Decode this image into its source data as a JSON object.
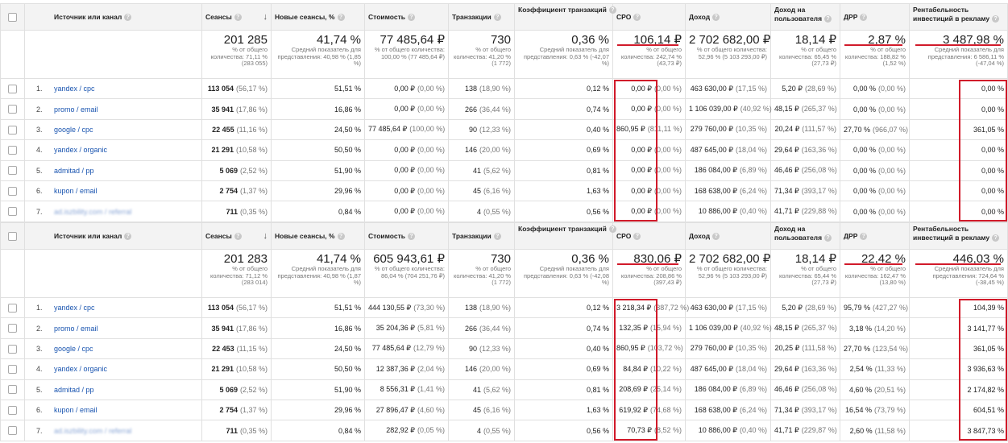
{
  "header": {
    "source": "Источник или канал",
    "sessions": "Сеансы",
    "newSessions": "Новые сеансы, %",
    "cost": "Стоимость",
    "transactions": "Транзакции",
    "convRate": "Коэффициент транзакций",
    "cpo": "CPO",
    "revenue": "Доход",
    "revPerUser": "Доход на пользователя",
    "drr": "ДРР",
    "roi": "Рентабельность инвестиций в рекламу",
    "help_glyph": "?",
    "sort_glyph": "↓"
  },
  "tables": [
    {
      "totals": {
        "sessions": {
          "value": "201 285",
          "sub": "% от общего количества: 71,11 % (283 055)"
        },
        "newSessions": {
          "value": "41,74 %",
          "sub": "Средний показатель для представления: 40,98 % (1,85 %)"
        },
        "cost": {
          "value": "77 485,64 ₽",
          "sub": "% от общего количества: 100,00 % (77 485,64 ₽)"
        },
        "transactions": {
          "value": "730",
          "sub": "% от общего количества: 41,20 % (1 772)"
        },
        "convRate": {
          "value": "0,36 %",
          "sub": "Средний показатель для представления: 0,63 % (-42,07 %)"
        },
        "cpo": {
          "value": "106,14 ₽",
          "sub": "% от общего количества: 242,74 % (43,73 ₽)"
        },
        "revenue": {
          "value": "2 702 682,00 ₽",
          "sub": "% от общего количества: 52,96 % (5 103 293,00 ₽)"
        },
        "revPerUser": {
          "value": "18,14 ₽",
          "sub": "% от общего количества: 65,45 % (27,73 ₽)"
        },
        "drr": {
          "value": "2,87 %",
          "sub": "% от общего количества: 188,82 % (1,52 %)"
        },
        "roi": {
          "value": "3 487,98 %",
          "sub": "Средний показатель для представления: 6 586,11 % (-47,04 %)"
        }
      },
      "rows": [
        {
          "n": "1.",
          "src": "yandex / cpc",
          "sessions": "113 054",
          "sessionsPct": "(56,17 %)",
          "newSessions": "51,51 %",
          "cost": "0,00 ₽",
          "costPct": "(0,00 %)",
          "tr": "138",
          "trPct": "(18,90 %)",
          "conv": "0,12 %",
          "cpo": "0,00 ₽",
          "cpoPct": "(0,00 %)",
          "rev": "463 630,00 ₽",
          "revPct": "(17,15 %)",
          "rpu": "5,20 ₽",
          "rpuPct": "(28,69 %)",
          "drr": "0,00 %",
          "drrPct": "(0,00 %)",
          "roi": "0,00 %"
        },
        {
          "n": "2.",
          "src": "promo / email",
          "sessions": "35 941",
          "sessionsPct": "(17,86 %)",
          "newSessions": "16,86 %",
          "cost": "0,00 ₽",
          "costPct": "(0,00 %)",
          "tr": "266",
          "trPct": "(36,44 %)",
          "conv": "0,74 %",
          "cpo": "0,00 ₽",
          "cpoPct": "(0,00 %)",
          "rev": "1 106 039,00 ₽",
          "revPct": "(40,92 %)",
          "rpu": "48,15 ₽",
          "rpuPct": "(265,37 %)",
          "drr": "0,00 %",
          "drrPct": "(0,00 %)",
          "roi": "0,00 %"
        },
        {
          "n": "3.",
          "src": "google / cpc",
          "sessions": "22 455",
          "sessionsPct": "(11,16 %)",
          "newSessions": "24,50 %",
          "cost": "77 485,64 ₽",
          "costPct": "(100,00 %)",
          "tr": "90",
          "trPct": "(12,33 %)",
          "conv": "0,40 %",
          "cpo": "860,95 ₽",
          "cpoPct": "(811,11 %)",
          "rev": "279 760,00 ₽",
          "revPct": "(10,35 %)",
          "rpu": "20,24 ₽",
          "rpuPct": "(111,57 %)",
          "drr": "27,70 %",
          "drrPct": "(966,07 %)",
          "roi": "361,05 %"
        },
        {
          "n": "4.",
          "src": "yandex / organic",
          "sessions": "21 291",
          "sessionsPct": "(10,58 %)",
          "newSessions": "50,50 %",
          "cost": "0,00 ₽",
          "costPct": "(0,00 %)",
          "tr": "146",
          "trPct": "(20,00 %)",
          "conv": "0,69 %",
          "cpo": "0,00 ₽",
          "cpoPct": "(0,00 %)",
          "rev": "487 645,00 ₽",
          "revPct": "(18,04 %)",
          "rpu": "29,64 ₽",
          "rpuPct": "(163,36 %)",
          "drr": "0,00 %",
          "drrPct": "(0,00 %)",
          "roi": "0,00 %"
        },
        {
          "n": "5.",
          "src": "admitad / pp",
          "sessions": "5 069",
          "sessionsPct": "(2,52 %)",
          "newSessions": "51,90 %",
          "cost": "0,00 ₽",
          "costPct": "(0,00 %)",
          "tr": "41",
          "trPct": "(5,62 %)",
          "conv": "0,81 %",
          "cpo": "0,00 ₽",
          "cpoPct": "(0,00 %)",
          "rev": "186 084,00 ₽",
          "revPct": "(6,89 %)",
          "rpu": "46,46 ₽",
          "rpuPct": "(256,08 %)",
          "drr": "0,00 %",
          "drrPct": "(0,00 %)",
          "roi": "0,00 %"
        },
        {
          "n": "6.",
          "src": "kupon / email",
          "sessions": "2 754",
          "sessionsPct": "(1,37 %)",
          "newSessions": "29,96 %",
          "cost": "0,00 ₽",
          "costPct": "(0,00 %)",
          "tr": "45",
          "trPct": "(6,16 %)",
          "conv": "1,63 %",
          "cpo": "0,00 ₽",
          "cpoPct": "(0,00 %)",
          "rev": "168 638,00 ₽",
          "revPct": "(6,24 %)",
          "rpu": "71,34 ₽",
          "rpuPct": "(393,17 %)",
          "drr": "0,00 %",
          "drrPct": "(0,00 %)",
          "roi": "0,00 %"
        },
        {
          "n": "7.",
          "src": "ad.iszbility.com / referral",
          "sessions": "711",
          "sessionsPct": "(0,35 %)",
          "newSessions": "0,84 %",
          "cost": "0,00 ₽",
          "costPct": "(0,00 %)",
          "tr": "4",
          "trPct": "(0,55 %)",
          "conv": "0,56 %",
          "cpo": "0,00 ₽",
          "cpoPct": "(0,00 %)",
          "rev": "10 886,00 ₽",
          "revPct": "(0,40 %)",
          "rpu": "41,71 ₽",
          "rpuPct": "(229,88 %)",
          "drr": "0,00 %",
          "drrPct": "(0,00 %)",
          "roi": "0,00 %"
        }
      ]
    },
    {
      "totals": {
        "sessions": {
          "value": "201 283",
          "sub": "% от общего количества: 71,12 % (283 014)"
        },
        "newSessions": {
          "value": "41,74 %",
          "sub": "Средний показатель для представления: 40,98 % (1,87 %)"
        },
        "cost": {
          "value": "605 943,61 ₽",
          "sub": "% от общего количества: 86,04 % (704 251,76 ₽)"
        },
        "transactions": {
          "value": "730",
          "sub": "% от общего количества: 41,20 % (1 772)"
        },
        "convRate": {
          "value": "0,36 %",
          "sub": "Средний показатель для представления: 0,63 % (-42,08 %)"
        },
        "cpo": {
          "value": "830,06 ₽",
          "sub": "% от общего количества: 208,86 % (397,43 ₽)"
        },
        "revenue": {
          "value": "2 702 682,00 ₽",
          "sub": "% от общего количества: 52,96 % (5 103 293,00 ₽)"
        },
        "revPerUser": {
          "value": "18,14 ₽",
          "sub": "% от общего количества: 65,44 % (27,73 ₽)"
        },
        "drr": {
          "value": "22,42 %",
          "sub": "% от общего количества: 162,47 % (13,80 %)"
        },
        "roi": {
          "value": "446,03 %",
          "sub": "Средний показатель для представления: 724,64 % (-38,45 %)"
        }
      },
      "rows": [
        {
          "n": "1.",
          "src": "yandex / cpc",
          "sessions": "113 054",
          "sessionsPct": "(56,17 %)",
          "newSessions": "51,51 %",
          "cost": "444 130,55 ₽",
          "costPct": "(73,30 %)",
          "tr": "138",
          "trPct": "(18,90 %)",
          "conv": "0,12 %",
          "cpo": "3 218,34 ₽",
          "cpoPct": "(387,72 %)",
          "rev": "463 630,00 ₽",
          "revPct": "(17,15 %)",
          "rpu": "5,20 ₽",
          "rpuPct": "(28,69 %)",
          "drr": "95,79 %",
          "drrPct": "(427,27 %)",
          "roi": "104,39 %"
        },
        {
          "n": "2.",
          "src": "promo / email",
          "sessions": "35 941",
          "sessionsPct": "(17,86 %)",
          "newSessions": "16,86 %",
          "cost": "35 204,36 ₽",
          "costPct": "(5,81 %)",
          "tr": "266",
          "trPct": "(36,44 %)",
          "conv": "0,74 %",
          "cpo": "132,35 ₽",
          "cpoPct": "(15,94 %)",
          "rev": "1 106 039,00 ₽",
          "revPct": "(40,92 %)",
          "rpu": "48,15 ₽",
          "rpuPct": "(265,37 %)",
          "drr": "3,18 %",
          "drrPct": "(14,20 %)",
          "roi": "3 141,77 %"
        },
        {
          "n": "3.",
          "src": "google / cpc",
          "sessions": "22 453",
          "sessionsPct": "(11,15 %)",
          "newSessions": "24,50 %",
          "cost": "77 485,64 ₽",
          "costPct": "(12,79 %)",
          "tr": "90",
          "trPct": "(12,33 %)",
          "conv": "0,40 %",
          "cpo": "860,95 ₽",
          "cpoPct": "(103,72 %)",
          "rev": "279 760,00 ₽",
          "revPct": "(10,35 %)",
          "rpu": "20,25 ₽",
          "rpuPct": "(111,58 %)",
          "drr": "27,70 %",
          "drrPct": "(123,54 %)",
          "roi": "361,05 %"
        },
        {
          "n": "4.",
          "src": "yandex / organic",
          "sessions": "21 291",
          "sessionsPct": "(10,58 %)",
          "newSessions": "50,50 %",
          "cost": "12 387,36 ₽",
          "costPct": "(2,04 %)",
          "tr": "146",
          "trPct": "(20,00 %)",
          "conv": "0,69 %",
          "cpo": "84,84 ₽",
          "cpoPct": "(10,22 %)",
          "rev": "487 645,00 ₽",
          "revPct": "(18,04 %)",
          "rpu": "29,64 ₽",
          "rpuPct": "(163,36 %)",
          "drr": "2,54 %",
          "drrPct": "(11,33 %)",
          "roi": "3 936,63 %"
        },
        {
          "n": "5.",
          "src": "admitad / pp",
          "sessions": "5 069",
          "sessionsPct": "(2,52 %)",
          "newSessions": "51,90 %",
          "cost": "8 556,31 ₽",
          "costPct": "(1,41 %)",
          "tr": "41",
          "trPct": "(5,62 %)",
          "conv": "0,81 %",
          "cpo": "208,69 ₽",
          "cpoPct": "(25,14 %)",
          "rev": "186 084,00 ₽",
          "revPct": "(6,89 %)",
          "rpu": "46,46 ₽",
          "rpuPct": "(256,08 %)",
          "drr": "4,60 %",
          "drrPct": "(20,51 %)",
          "roi": "2 174,82 %"
        },
        {
          "n": "6.",
          "src": "kupon / email",
          "sessions": "2 754",
          "sessionsPct": "(1,37 %)",
          "newSessions": "29,96 %",
          "cost": "27 896,47 ₽",
          "costPct": "(4,60 %)",
          "tr": "45",
          "trPct": "(6,16 %)",
          "conv": "1,63 %",
          "cpo": "619,92 ₽",
          "cpoPct": "(74,68 %)",
          "rev": "168 638,00 ₽",
          "revPct": "(6,24 %)",
          "rpu": "71,34 ₽",
          "rpuPct": "(393,17 %)",
          "drr": "16,54 %",
          "drrPct": "(73,79 %)",
          "roi": "604,51 %"
        },
        {
          "n": "7.",
          "src": "ad.iszbility.com / referral",
          "sessions": "711",
          "sessionsPct": "(0,35 %)",
          "newSessions": "0,84 %",
          "cost": "282,92 ₽",
          "costPct": "(0,05 %)",
          "tr": "4",
          "trPct": "(0,55 %)",
          "conv": "0,56 %",
          "cpo": "70,73 ₽",
          "cpoPct": "(8,52 %)",
          "rev": "10 886,00 ₽",
          "revPct": "(0,40 %)",
          "rpu": "41,71 ₽",
          "rpuPct": "(229,87 %)",
          "drr": "2,60 %",
          "drrPct": "(11,58 %)",
          "roi": "3 847,73 %"
        }
      ]
    }
  ],
  "colors": {
    "annotation_red": "#d11a2a",
    "link_blue": "#1a55b0",
    "header_bg": "#f3f3f3"
  }
}
